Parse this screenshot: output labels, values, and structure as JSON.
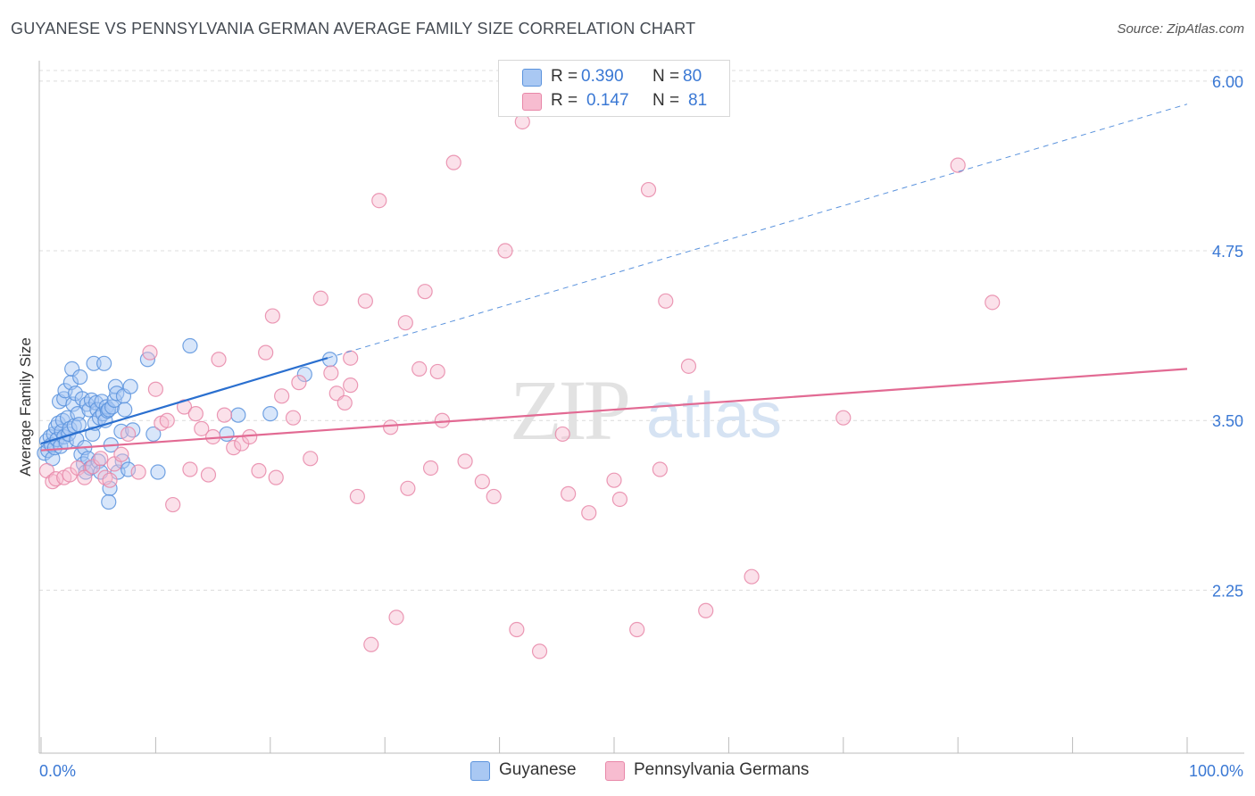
{
  "title": "GUYANESE VS PENNSYLVANIA GERMAN AVERAGE FAMILY SIZE CORRELATION CHART",
  "source": "Source: ZipAtlas.com",
  "legend": {
    "r_label": "R =",
    "n_label": "N =",
    "items": [
      {
        "name": "Guyanese",
        "r": "0.390",
        "n": "80",
        "fill": "#a9c8f3",
        "stroke": "#5b93dd"
      },
      {
        "name": "Pennsylvania Germans",
        "r": "0.147",
        "n": "81",
        "fill": "#f7bcd0",
        "stroke": "#e887a8"
      }
    ]
  },
  "watermark": {
    "zip": "ZIP",
    "atlas": "atlas"
  },
  "chart_data": {
    "type": "scatter",
    "ylabel": "Average Family Size",
    "xlabel": "",
    "xlim": [
      0,
      100
    ],
    "ylim": [
      1.05,
      6.15
    ],
    "x_tick_labels": [
      {
        "value": 0,
        "label": "0.0%"
      },
      {
        "value": 100,
        "label": "100.0%"
      }
    ],
    "y_ticks": [
      2.25,
      3.5,
      4.75,
      6.0
    ],
    "y_tick_labels": [
      "2.25",
      "3.50",
      "4.75",
      "6.00"
    ],
    "grid": "horizontal dashed",
    "legend_position": "top-center",
    "series": [
      {
        "name": "Guyanese",
        "color": "#5b93dd",
        "trend": {
          "x0": 0,
          "y0": 3.33,
          "x1": 25,
          "y1": 3.96,
          "dashed_to_x": 100,
          "dashed_to_y": 5.83
        },
        "points": [
          [
            0.3,
            3.26
          ],
          [
            0.5,
            3.35
          ],
          [
            0.6,
            3.28
          ],
          [
            0.8,
            3.38
          ],
          [
            0.9,
            3.32
          ],
          [
            1.0,
            3.22
          ],
          [
            1.1,
            3.4
          ],
          [
            1.2,
            3.3
          ],
          [
            1.3,
            3.45
          ],
          [
            1.4,
            3.36
          ],
          [
            1.5,
            3.48
          ],
          [
            1.6,
            3.64
          ],
          [
            1.7,
            3.31
          ],
          [
            1.8,
            3.42
          ],
          [
            1.9,
            3.5
          ],
          [
            2.0,
            3.38
          ],
          [
            2.0,
            3.66
          ],
          [
            2.1,
            3.72
          ],
          [
            2.2,
            3.34
          ],
          [
            2.3,
            3.52
          ],
          [
            2.4,
            3.4
          ],
          [
            2.5,
            3.44
          ],
          [
            2.6,
            3.78
          ],
          [
            2.7,
            3.88
          ],
          [
            2.8,
            3.62
          ],
          [
            2.9,
            3.46
          ],
          [
            3.0,
            3.7
          ],
          [
            3.1,
            3.36
          ],
          [
            3.2,
            3.55
          ],
          [
            3.3,
            3.47
          ],
          [
            3.4,
            3.82
          ],
          [
            3.5,
            3.25
          ],
          [
            3.6,
            3.66
          ],
          [
            3.7,
            3.18
          ],
          [
            3.8,
            3.3
          ],
          [
            3.9,
            3.12
          ],
          [
            4.0,
            3.62
          ],
          [
            4.1,
            3.22
          ],
          [
            4.2,
            3.58
          ],
          [
            4.3,
            3.15
          ],
          [
            4.4,
            3.65
          ],
          [
            4.5,
            3.4
          ],
          [
            4.6,
            3.92
          ],
          [
            4.7,
            3.48
          ],
          [
            4.8,
            3.63
          ],
          [
            4.9,
            3.58
          ],
          [
            5.0,
            3.2
          ],
          [
            5.1,
            3.52
          ],
          [
            5.2,
            3.12
          ],
          [
            5.3,
            3.64
          ],
          [
            5.4,
            3.55
          ],
          [
            5.5,
            3.92
          ],
          [
            5.6,
            3.5
          ],
          [
            5.7,
            3.6
          ],
          [
            5.8,
            3.57
          ],
          [
            5.9,
            3.58
          ],
          [
            6.0,
            3.0
          ],
          [
            6.1,
            3.32
          ],
          [
            6.2,
            3.6
          ],
          [
            6.4,
            3.65
          ],
          [
            6.5,
            3.75
          ],
          [
            6.6,
            3.7
          ],
          [
            5.9,
            2.9
          ],
          [
            6.7,
            3.12
          ],
          [
            7.0,
            3.42
          ],
          [
            7.1,
            3.2
          ],
          [
            7.2,
            3.68
          ],
          [
            7.3,
            3.58
          ],
          [
            7.6,
            3.14
          ],
          [
            7.8,
            3.75
          ],
          [
            8.0,
            3.43
          ],
          [
            9.3,
            3.95
          ],
          [
            9.8,
            3.4
          ],
          [
            10.2,
            3.12
          ],
          [
            13.0,
            4.05
          ],
          [
            16.2,
            3.4
          ],
          [
            17.2,
            3.54
          ],
          [
            20.0,
            3.55
          ],
          [
            23.0,
            3.84
          ],
          [
            25.2,
            3.95
          ]
        ]
      },
      {
        "name": "Pennsylvania Germans",
        "color": "#e887a8",
        "trend": {
          "x0": 0,
          "y0": 3.28,
          "x1": 100,
          "y1": 3.88
        },
        "points": [
          [
            0.5,
            3.13
          ],
          [
            1.0,
            3.05
          ],
          [
            1.3,
            3.07
          ],
          [
            2.0,
            3.08
          ],
          [
            2.5,
            3.1
          ],
          [
            3.2,
            3.15
          ],
          [
            3.8,
            3.08
          ],
          [
            4.5,
            3.16
          ],
          [
            5.2,
            3.22
          ],
          [
            5.6,
            3.08
          ],
          [
            6.0,
            3.06
          ],
          [
            6.4,
            3.18
          ],
          [
            7.0,
            3.25
          ],
          [
            7.6,
            3.4
          ],
          [
            8.5,
            3.12
          ],
          [
            9.5,
            4.0
          ],
          [
            10.0,
            3.73
          ],
          [
            10.5,
            3.48
          ],
          [
            11.0,
            3.5
          ],
          [
            11.5,
            2.88
          ],
          [
            12.5,
            3.6
          ],
          [
            13.0,
            3.14
          ],
          [
            13.5,
            3.55
          ],
          [
            14.0,
            3.44
          ],
          [
            14.6,
            3.1
          ],
          [
            15.0,
            3.38
          ],
          [
            15.5,
            3.95
          ],
          [
            16.0,
            3.54
          ],
          [
            16.8,
            3.3
          ],
          [
            17.5,
            3.33
          ],
          [
            18.2,
            3.38
          ],
          [
            19.0,
            3.13
          ],
          [
            19.6,
            4.0
          ],
          [
            20.2,
            4.27
          ],
          [
            20.5,
            3.08
          ],
          [
            21.0,
            3.68
          ],
          [
            22.0,
            3.52
          ],
          [
            22.5,
            3.78
          ],
          [
            23.5,
            3.22
          ],
          [
            24.4,
            4.4
          ],
          [
            25.3,
            3.85
          ],
          [
            25.8,
            3.7
          ],
          [
            26.5,
            3.63
          ],
          [
            27.0,
            3.76
          ],
          [
            27.6,
            2.94
          ],
          [
            28.3,
            4.38
          ],
          [
            28.8,
            1.85
          ],
          [
            29.5,
            5.12
          ],
          [
            30.5,
            3.45
          ],
          [
            31.0,
            2.05
          ],
          [
            32.0,
            3.0
          ],
          [
            31.8,
            4.22
          ],
          [
            33.0,
            3.88
          ],
          [
            33.5,
            4.45
          ],
          [
            34.0,
            3.15
          ],
          [
            34.6,
            3.86
          ],
          [
            35.0,
            3.5
          ],
          [
            36.0,
            5.4
          ],
          [
            37.0,
            3.2
          ],
          [
            38.5,
            3.05
          ],
          [
            39.5,
            2.94
          ],
          [
            40.5,
            4.75
          ],
          [
            41.5,
            1.96
          ],
          [
            42.0,
            5.7
          ],
          [
            43.5,
            1.8
          ],
          [
            45.5,
            3.4
          ],
          [
            46.0,
            2.96
          ],
          [
            47.8,
            2.82
          ],
          [
            50.0,
            3.06
          ],
          [
            50.5,
            2.92
          ],
          [
            52.0,
            1.96
          ],
          [
            53.0,
            5.2
          ],
          [
            54.0,
            3.14
          ],
          [
            54.5,
            4.38
          ],
          [
            56.5,
            3.9
          ],
          [
            58.0,
            2.1
          ],
          [
            62.0,
            2.35
          ],
          [
            70.0,
            3.52
          ],
          [
            80.0,
            5.38
          ],
          [
            83.0,
            4.37
          ],
          [
            27.0,
            3.96
          ]
        ]
      }
    ]
  }
}
